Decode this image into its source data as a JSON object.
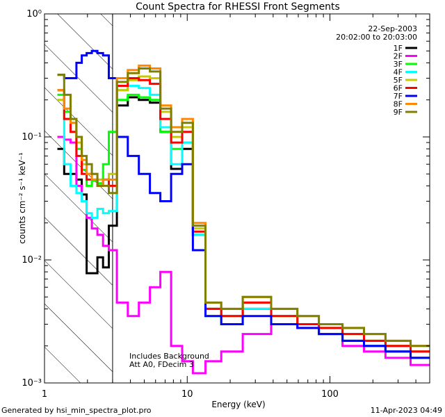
{
  "chart_data": {
    "type": "line",
    "title": "Count Spectra for RHESSI Front Segments",
    "xlabel": "Energy (keV)",
    "ylabel": "counts cm⁻² s⁻¹ keV⁻¹",
    "x_scale": "log",
    "y_scale": "log",
    "xlim": [
      1,
      500
    ],
    "ylim": [
      0.001,
      1
    ],
    "x_ticks": [
      {
        "value": 1,
        "label": "1"
      },
      {
        "value": 10,
        "label": "10"
      },
      {
        "value": 100,
        "label": "100"
      }
    ],
    "y_ticks": [
      {
        "value": 0.001,
        "label": "10⁻³"
      },
      {
        "value": 0.01,
        "label": "10⁻²"
      },
      {
        "value": 0.1,
        "label": "10⁻¹"
      },
      {
        "value": 1,
        "label": "10⁰"
      }
    ],
    "date": "22-Sep-2003",
    "time_range": "20:02:00 to 20:03:00",
    "annotations": [
      "Includes Background",
      "Att A0, FDecim 3"
    ],
    "footer_left": "Generated by hsi_min_spectra_plot.pro",
    "footer_right": "11-Apr-2023 04:49",
    "hatched_region_x": [
      1,
      3
    ],
    "legend_position": "top-right",
    "series": [
      {
        "name": "1F",
        "color": "#000000",
        "values": [
          0.08,
          0.05,
          0.05,
          0.045,
          0.034,
          0.0078,
          0.0078,
          0.0105,
          0.0087,
          0.019,
          0.18,
          0.21,
          0.2,
          0.19,
          0.11,
          0.055,
          0.08,
          0.016,
          0.004,
          0.0035,
          0.004,
          0.003,
          0.003,
          0.0025,
          0.0022,
          0.002,
          0.0018,
          0.0016
        ]
      },
      {
        "name": "2F",
        "color": "#ff00ff",
        "values": [
          0.1,
          0.095,
          0.09,
          0.04,
          0.03,
          0.022,
          0.018,
          0.016,
          0.013,
          0.012,
          0.0045,
          0.0035,
          0.0045,
          0.006,
          0.008,
          0.002,
          0.0015,
          0.0012,
          0.0015,
          0.0018,
          0.0025,
          0.003,
          0.0028,
          0.0025,
          0.002,
          0.0018,
          0.0016,
          0.0014
        ]
      },
      {
        "name": "3F",
        "color": "#00ff00",
        "values": [
          0.22,
          0.16,
          0.14,
          0.08,
          0.054,
          0.04,
          0.044,
          0.042,
          0.06,
          0.11,
          0.2,
          0.22,
          0.21,
          0.2,
          0.11,
          0.08,
          0.09,
          0.016,
          0.0035,
          0.003,
          0.0045,
          0.0035,
          0.003,
          0.0028,
          0.0025,
          0.0022,
          0.002,
          0.0018
        ]
      },
      {
        "name": "4F",
        "color": "#00ffff",
        "values": [
          0.24,
          0.06,
          0.04,
          0.035,
          0.03,
          0.024,
          0.022,
          0.026,
          0.024,
          0.025,
          0.24,
          0.26,
          0.25,
          0.22,
          0.12,
          0.06,
          0.09,
          0.016,
          0.004,
          0.0035,
          0.004,
          0.003,
          0.003,
          0.0025,
          0.0022,
          0.002,
          0.0018,
          0.0016
        ]
      },
      {
        "name": "5F",
        "color": "#c8c800",
        "values": [
          0.2,
          0.14,
          0.13,
          0.09,
          0.06,
          0.05,
          0.05,
          0.045,
          0.045,
          0.05,
          0.24,
          0.29,
          0.31,
          0.3,
          0.16,
          0.1,
          0.12,
          0.018,
          0.004,
          0.0035,
          0.0045,
          0.0035,
          0.003,
          0.0028,
          0.0025,
          0.0022,
          0.002,
          0.0018
        ]
      },
      {
        "name": "6F",
        "color": "#ff0000",
        "values": [
          0.24,
          0.14,
          0.11,
          0.07,
          0.05,
          0.045,
          0.045,
          0.04,
          0.045,
          0.04,
          0.26,
          0.3,
          0.29,
          0.27,
          0.14,
          0.09,
          0.11,
          0.017,
          0.004,
          0.0035,
          0.0045,
          0.0035,
          0.003,
          0.0028,
          0.0025,
          0.0022,
          0.002,
          0.0018
        ]
      },
      {
        "name": "7F",
        "color": "#0000ff",
        "values": [
          0.32,
          0.3,
          0.3,
          0.4,
          0.46,
          0.48,
          0.5,
          0.48,
          0.46,
          0.3,
          0.1,
          0.07,
          0.05,
          0.035,
          0.03,
          0.05,
          0.06,
          0.012,
          0.0035,
          0.003,
          0.0035,
          0.003,
          0.0028,
          0.0025,
          0.0022,
          0.002,
          0.0018,
          0.0016
        ]
      },
      {
        "name": "8F",
        "color": "#ff8800",
        "values": [
          0.24,
          0.17,
          0.13,
          0.1,
          0.065,
          0.05,
          0.045,
          0.04,
          0.045,
          0.045,
          0.3,
          0.35,
          0.38,
          0.36,
          0.18,
          0.12,
          0.14,
          0.02,
          0.0045,
          0.004,
          0.005,
          0.004,
          0.0035,
          0.003,
          0.0028,
          0.0025,
          0.0022,
          0.002
        ]
      },
      {
        "name": "9F",
        "color": "#808000",
        "values": [
          0.32,
          0.22,
          0.14,
          0.1,
          0.07,
          0.06,
          0.05,
          0.04,
          0.04,
          0.035,
          0.28,
          0.33,
          0.36,
          0.34,
          0.17,
          0.11,
          0.13,
          0.019,
          0.0045,
          0.004,
          0.005,
          0.004,
          0.0035,
          0.003,
          0.0028,
          0.0025,
          0.0022,
          0.002
        ]
      }
    ],
    "x": [
      1.3,
      1.45,
      1.6,
      1.75,
      1.9,
      2.05,
      2.25,
      2.45,
      2.7,
      2.95,
      3.5,
      4.2,
      5.0,
      6.0,
      7.0,
      8.5,
      10.0,
      12.0,
      15.0,
      20.0,
      30.0,
      50.0,
      70.0,
      100.0,
      150.0,
      200.0,
      300.0,
      450.0
    ]
  }
}
